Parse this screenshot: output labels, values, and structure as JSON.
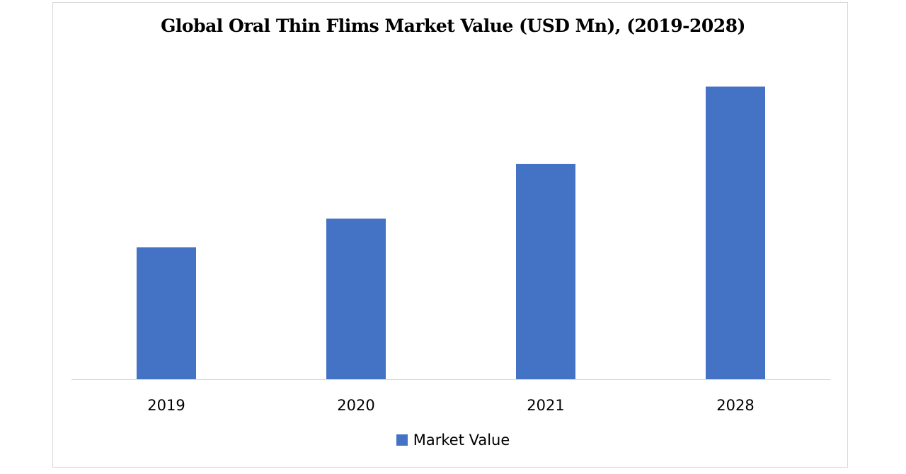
{
  "chart_data": {
    "type": "bar",
    "title": "Global Oral Thin Flims Market Value (USD Mn), (2019-2028)",
    "categories": [
      "2019",
      "2020",
      "2021",
      "2028"
    ],
    "series": [
      {
        "name": "Market Value",
        "color": "#4472C4",
        "values": [
          46,
          56,
          75,
          102
        ]
      }
    ],
    "xlabel": "",
    "ylabel": "",
    "ylim": [
      0,
      110
    ],
    "grid": false,
    "legend": "bottom-center"
  }
}
